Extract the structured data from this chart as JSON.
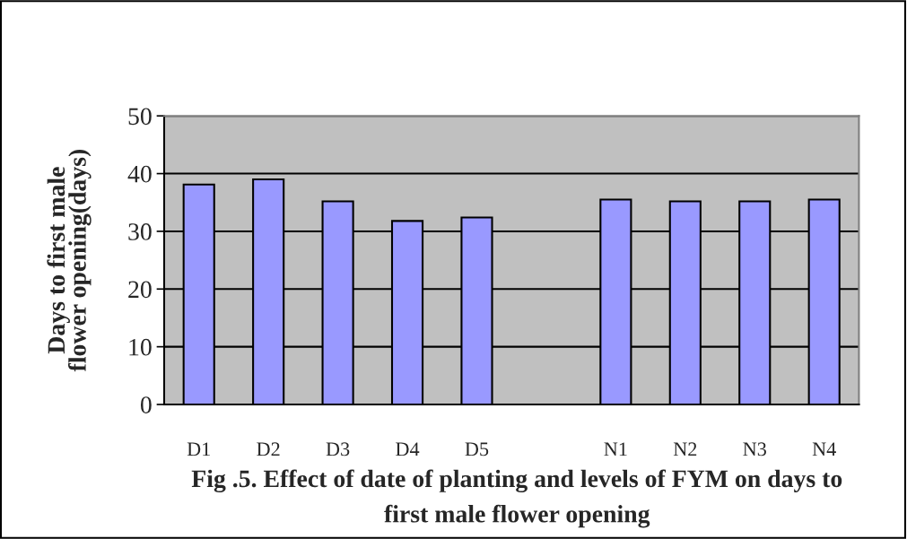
{
  "chart_data": {
    "type": "bar",
    "title": "Fig .5. Effect of date of planting and levels of FYM on days to first male flower opening",
    "ylabel": "Days to first male flower opening(days)",
    "categories": [
      "D1",
      "D2",
      "D3",
      "D4",
      "D5",
      null,
      "N1",
      "N2",
      "N3",
      "N4"
    ],
    "values": [
      38.1,
      39.0,
      35.2,
      31.8,
      32.4,
      null,
      35.5,
      35.2,
      35.2,
      35.5
    ],
    "color": "#9999ff",
    "ylim": [
      0,
      50
    ],
    "yticks": [
      0,
      10,
      20,
      30,
      40,
      50
    ],
    "grid": "y",
    "legend": false
  }
}
